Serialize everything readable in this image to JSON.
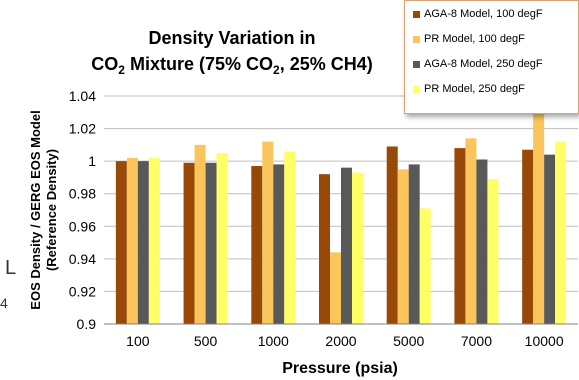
{
  "chart_data": {
    "type": "bar",
    "title_line1": "Density Variation in",
    "title_line2_prefix": "CO",
    "title_line2_sub": "2",
    "title_line2_suffix": " Mixture (75% CO",
    "title_line2_sub2": "2",
    "title_line2_end": ", 25% CH4)",
    "xlabel": "Pressure (psia)",
    "ylabel_line1": "EOS Density / GERG EOS Model",
    "ylabel_line2": "(Reference Density)",
    "categories": [
      "100",
      "500",
      "1000",
      "2000",
      "5000",
      "7000",
      "10000"
    ],
    "ylim": [
      0.9,
      1.04
    ],
    "yticks": [
      "0.9",
      "0.92",
      "0.94",
      "0.96",
      "0.98",
      "1",
      "1.02",
      "1.04"
    ],
    "grid": true,
    "legend_position": "top-right",
    "series": [
      {
        "name": "AGA-8 Model, 100 degF",
        "color": "#984807",
        "values": [
          1.0,
          0.999,
          0.997,
          0.992,
          1.009,
          1.008,
          1.007
        ]
      },
      {
        "name": "PR Model, 100 degF",
        "color": "#fac55a",
        "values": [
          1.002,
          1.01,
          1.012,
          0.944,
          0.995,
          1.014,
          1.03
        ]
      },
      {
        "name": "AGA-8 Model, 250 degF",
        "color": "#595959",
        "values": [
          1.0,
          0.999,
          0.998,
          0.996,
          0.998,
          1.001,
          1.004
        ]
      },
      {
        "name": "PR Model, 250 degF",
        "color": "#ffff66",
        "values": [
          1.002,
          1.005,
          1.006,
          0.993,
          0.971,
          0.989,
          1.012
        ]
      }
    ]
  },
  "artifacts": {
    "left_char": "4",
    "left_mark": "L"
  }
}
